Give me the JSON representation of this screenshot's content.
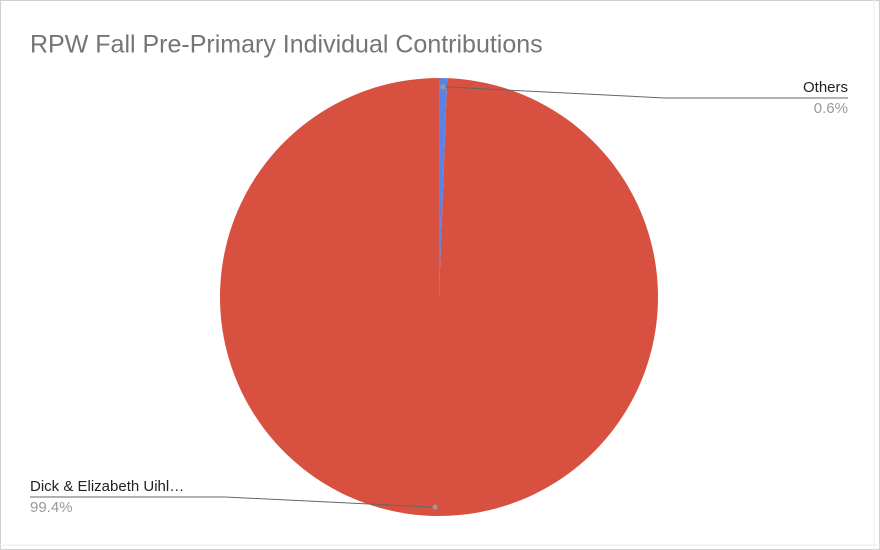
{
  "chart_data": {
    "type": "pie",
    "title": "RPW Fall Pre-Primary Individual Contributions",
    "categories": [
      "Others",
      "Dick & Elizabeth Uihl…"
    ],
    "values": [
      0.6,
      99.4
    ],
    "value_labels": [
      "0.6%",
      "99.4%"
    ],
    "colors": [
      "#5a83e8",
      "#d8503f"
    ]
  }
}
